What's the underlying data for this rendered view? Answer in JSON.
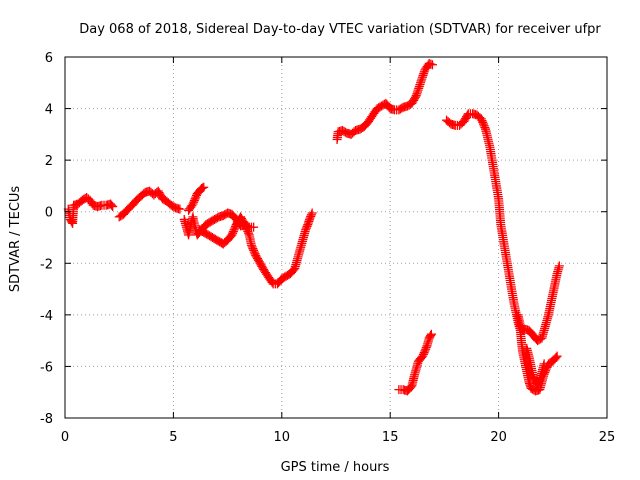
{
  "chart_data": {
    "type": "scatter",
    "title": "Day 068 of 2018, Sidereal Day-to-day VTEC variation (SDTVAR) for receiver ufpr",
    "xlabel": "GPS time / hours",
    "ylabel": "SDTVAR / TECUs",
    "xlim": [
      0,
      25
    ],
    "ylim": [
      -8,
      6
    ],
    "xticks": [
      "0",
      "5",
      "10",
      "15",
      "20",
      "25"
    ],
    "yticks": [
      "-8",
      "-6",
      "-4",
      "-2",
      "0",
      "2",
      "4",
      "6"
    ],
    "grid": true,
    "marker": "+",
    "color": "#ff0000",
    "series": [
      {
        "name": "seg1",
        "points": [
          [
            0.15,
            0.1
          ],
          [
            0.25,
            -0.3
          ],
          [
            0.35,
            -0.45
          ],
          [
            0.4,
            0.25
          ],
          [
            0.6,
            0.3
          ],
          [
            0.8,
            0.45
          ],
          [
            1.0,
            0.55
          ],
          [
            1.15,
            0.45
          ],
          [
            1.3,
            0.25
          ],
          [
            1.5,
            0.2
          ],
          [
            1.7,
            0.25
          ],
          [
            1.9,
            0.25
          ],
          [
            2.1,
            0.3
          ],
          [
            2.2,
            0.2
          ]
        ]
      },
      {
        "name": "seg2",
        "points": [
          [
            2.5,
            -0.2
          ],
          [
            2.7,
            -0.1
          ],
          [
            2.9,
            0.1
          ],
          [
            3.1,
            0.25
          ],
          [
            3.3,
            0.45
          ],
          [
            3.5,
            0.6
          ],
          [
            3.7,
            0.75
          ],
          [
            3.9,
            0.8
          ],
          [
            4.1,
            0.65
          ],
          [
            4.3,
            0.8
          ],
          [
            4.5,
            0.5
          ],
          [
            4.7,
            0.4
          ],
          [
            4.9,
            0.25
          ],
          [
            5.1,
            0.15
          ],
          [
            5.3,
            0.1
          ]
        ]
      },
      {
        "name": "seg3",
        "points": [
          [
            5.5,
            -0.3
          ],
          [
            5.6,
            -0.6
          ],
          [
            5.7,
            -0.9
          ],
          [
            5.8,
            -0.5
          ],
          [
            5.9,
            -0.2
          ],
          [
            6.0,
            -0.6
          ],
          [
            6.1,
            -0.9
          ],
          [
            6.3,
            -0.7
          ],
          [
            6.5,
            -0.5
          ],
          [
            6.7,
            -0.4
          ],
          [
            6.9,
            -0.3
          ],
          [
            7.1,
            -0.2
          ],
          [
            7.3,
            -0.15
          ],
          [
            7.5,
            -0.05
          ],
          [
            7.7,
            -0.1
          ],
          [
            7.9,
            -0.3
          ],
          [
            8.1,
            -0.55
          ],
          [
            8.3,
            -0.5
          ],
          [
            8.5,
            -0.6
          ],
          [
            8.7,
            -0.6
          ]
        ]
      },
      {
        "name": "seg4",
        "points": [
          [
            5.7,
            0.05
          ],
          [
            5.9,
            0.3
          ],
          [
            6.0,
            0.5
          ],
          [
            6.1,
            0.7
          ],
          [
            6.2,
            0.8
          ],
          [
            6.3,
            0.9
          ],
          [
            6.4,
            0.95
          ]
        ]
      },
      {
        "name": "seg5",
        "points": [
          [
            6.2,
            -0.7
          ],
          [
            6.4,
            -0.8
          ],
          [
            6.6,
            -0.9
          ],
          [
            6.8,
            -1.0
          ],
          [
            7.0,
            -1.1
          ],
          [
            7.2,
            -1.2
          ],
          [
            7.3,
            -1.25
          ],
          [
            7.5,
            -1.1
          ],
          [
            7.7,
            -0.9
          ],
          [
            7.8,
            -0.7
          ],
          [
            7.9,
            -0.5
          ],
          [
            8.0,
            -0.35
          ],
          [
            8.1,
            -0.2
          ],
          [
            8.3,
            -0.5
          ],
          [
            8.5,
            -0.9
          ],
          [
            8.6,
            -1.3
          ],
          [
            8.8,
            -1.7
          ],
          [
            9.0,
            -2.0
          ],
          [
            9.2,
            -2.3
          ],
          [
            9.4,
            -2.55
          ],
          [
            9.6,
            -2.8
          ],
          [
            9.8,
            -2.8
          ],
          [
            10.0,
            -2.6
          ],
          [
            10.2,
            -2.5
          ],
          [
            10.4,
            -2.4
          ],
          [
            10.6,
            -2.2
          ],
          [
            10.7,
            -1.9
          ],
          [
            10.8,
            -1.6
          ],
          [
            10.9,
            -1.3
          ],
          [
            11.0,
            -1.0
          ],
          [
            11.1,
            -0.7
          ],
          [
            11.2,
            -0.5
          ],
          [
            11.3,
            -0.25
          ],
          [
            11.4,
            -0.05
          ]
        ]
      },
      {
        "name": "seg6",
        "points": [
          [
            12.55,
            2.8
          ],
          [
            12.6,
            3.1
          ],
          [
            12.8,
            3.15
          ],
          [
            13.0,
            3.05
          ],
          [
            13.2,
            3.0
          ],
          [
            13.4,
            3.15
          ],
          [
            13.6,
            3.2
          ],
          [
            13.8,
            3.3
          ],
          [
            14.0,
            3.5
          ],
          [
            14.2,
            3.75
          ],
          [
            14.4,
            4.0
          ],
          [
            14.6,
            4.1
          ],
          [
            14.8,
            4.2
          ],
          [
            15.0,
            4.0
          ],
          [
            15.2,
            3.95
          ],
          [
            15.4,
            3.95
          ],
          [
            15.6,
            4.05
          ],
          [
            15.8,
            4.1
          ],
          [
            16.0,
            4.2
          ],
          [
            16.2,
            4.5
          ],
          [
            16.4,
            5.0
          ],
          [
            16.6,
            5.5
          ],
          [
            16.8,
            5.75
          ],
          [
            16.95,
            5.7
          ]
        ]
      },
      {
        "name": "seg7",
        "points": [
          [
            15.4,
            -6.9
          ],
          [
            15.6,
            -6.9
          ],
          [
            15.8,
            -6.95
          ],
          [
            16.0,
            -6.75
          ],
          [
            16.1,
            -6.4
          ],
          [
            16.2,
            -6.1
          ],
          [
            16.3,
            -5.8
          ],
          [
            16.5,
            -5.6
          ],
          [
            16.6,
            -5.4
          ],
          [
            16.7,
            -5.2
          ],
          [
            16.8,
            -4.9
          ],
          [
            16.9,
            -4.75
          ]
        ]
      },
      {
        "name": "seg8",
        "points": [
          [
            17.6,
            3.55
          ],
          [
            17.8,
            3.4
          ],
          [
            18.0,
            3.35
          ],
          [
            18.2,
            3.35
          ],
          [
            18.4,
            3.5
          ],
          [
            18.6,
            3.8
          ],
          [
            18.8,
            3.8
          ],
          [
            19.0,
            3.75
          ],
          [
            19.2,
            3.6
          ],
          [
            19.4,
            3.2
          ],
          [
            19.6,
            2.5
          ],
          [
            19.7,
            2.0
          ],
          [
            19.8,
            1.5
          ],
          [
            19.9,
            1.0
          ],
          [
            20.0,
            0.5
          ],
          [
            20.05,
            0.0
          ],
          [
            20.1,
            -0.5
          ],
          [
            20.2,
            -1.0
          ],
          [
            20.3,
            -1.5
          ],
          [
            20.4,
            -2.0
          ],
          [
            20.5,
            -2.5
          ],
          [
            20.6,
            -3.0
          ],
          [
            20.7,
            -3.5
          ],
          [
            20.8,
            -3.9
          ],
          [
            20.9,
            -4.3
          ],
          [
            21.0,
            -4.6
          ],
          [
            21.05,
            -5.0
          ],
          [
            21.1,
            -5.4
          ],
          [
            21.2,
            -5.8
          ],
          [
            21.3,
            -6.2
          ],
          [
            21.4,
            -6.6
          ],
          [
            21.5,
            -6.85
          ],
          [
            21.7,
            -6.95
          ],
          [
            21.9,
            -6.9
          ],
          [
            22.0,
            -6.6
          ],
          [
            22.1,
            -6.3
          ],
          [
            22.2,
            -6.1
          ],
          [
            22.3,
            -5.9
          ],
          [
            22.5,
            -5.8
          ],
          [
            22.7,
            -5.6
          ]
        ]
      },
      {
        "name": "seg9",
        "points": [
          [
            20.9,
            -4.0
          ],
          [
            21.0,
            -4.4
          ],
          [
            21.1,
            -4.6
          ],
          [
            21.2,
            -4.55
          ],
          [
            21.4,
            -4.6
          ],
          [
            21.6,
            -4.8
          ],
          [
            21.8,
            -5.0
          ],
          [
            22.0,
            -4.9
          ],
          [
            22.1,
            -4.6
          ],
          [
            22.2,
            -4.3
          ],
          [
            22.3,
            -4.0
          ],
          [
            22.4,
            -3.6
          ],
          [
            22.5,
            -3.2
          ],
          [
            22.6,
            -2.8
          ],
          [
            22.7,
            -2.4
          ],
          [
            22.8,
            -2.1
          ]
        ]
      },
      {
        "name": "seg10",
        "points": [
          [
            21.3,
            -5.3
          ],
          [
            21.4,
            -5.6
          ],
          [
            21.5,
            -6.0
          ],
          [
            21.6,
            -6.4
          ],
          [
            21.7,
            -6.6
          ],
          [
            21.8,
            -6.7
          ],
          [
            21.9,
            -6.5
          ],
          [
            22.0,
            -6.2
          ],
          [
            22.1,
            -5.9
          ]
        ]
      }
    ]
  }
}
